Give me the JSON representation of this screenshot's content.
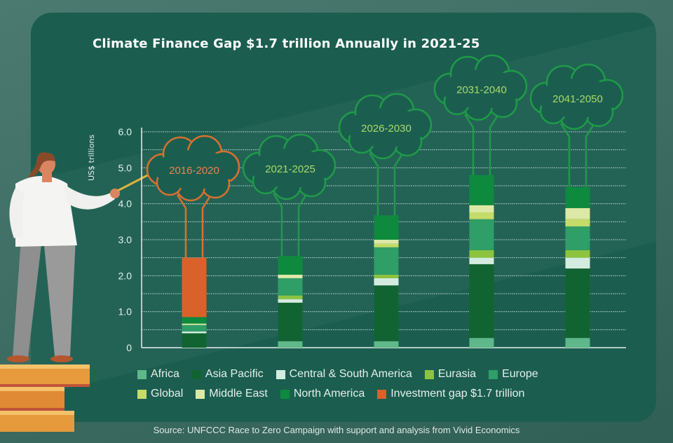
{
  "title": "Climate Finance Gap $1.7 trillion Annually in 2021-25",
  "source": "Source: UNFCCC Race to Zero Campaign with support and analysis from Vivid Economics",
  "chart_data": {
    "type": "bar",
    "stacked": true,
    "title": "Climate Finance Gap $1.7 trillion Annually in 2021-25",
    "ylabel": "US$ trillions",
    "xlabel": "",
    "ylim": [
      0,
      6.0
    ],
    "yticks": [
      "0",
      "1.0",
      "2.0",
      "3.0",
      "4.0",
      "5.0",
      "6.0"
    ],
    "grid": true,
    "legend_position": "bottom",
    "categories": [
      "2016-2020",
      "2021-2025",
      "2026-2030",
      "2031-2040",
      "2041-2050"
    ],
    "category_colors": [
      "#d9702f",
      "#1f9a48",
      "#1f9a48",
      "#1f9a48",
      "#1f9a48"
    ],
    "label_colors": [
      "#e8834a",
      "#a9d86a",
      "#a9d86a",
      "#a9d86a",
      "#a9d86a"
    ],
    "series": [
      {
        "name": "Africa",
        "color": "#5fb88a",
        "values": [
          0.0,
          0.18,
          0.18,
          0.27,
          0.27
        ]
      },
      {
        "name": "Asia Pacific",
        "color": "#116431",
        "values": [
          0.4,
          1.07,
          1.55,
          2.05,
          1.93
        ]
      },
      {
        "name": "Central & South America",
        "color": "#d4ece0",
        "values": [
          0.05,
          0.1,
          0.2,
          0.18,
          0.3
        ]
      },
      {
        "name": "Eurasia",
        "color": "#8cc43f",
        "values": [
          0.0,
          0.1,
          0.1,
          0.21,
          0.21
        ]
      },
      {
        "name": "Europe",
        "color": "#2f9e67",
        "values": [
          0.18,
          0.48,
          0.76,
          0.86,
          0.66
        ]
      },
      {
        "name": "Global",
        "color": "#c4dc68",
        "values": [
          0.0,
          0.0,
          0.1,
          0.19,
          0.2
        ]
      },
      {
        "name": "Middle East",
        "color": "#dce9a6",
        "values": [
          0.04,
          0.1,
          0.11,
          0.2,
          0.31
        ]
      },
      {
        "name": "North America",
        "color": "#0d8a3e",
        "values": [
          0.18,
          0.52,
          0.68,
          0.84,
          0.58
        ]
      },
      {
        "name": "Investment gap $1.7 trillion",
        "color": "#d9622b",
        "values": [
          1.65,
          0,
          0,
          0,
          0
        ]
      }
    ]
  }
}
